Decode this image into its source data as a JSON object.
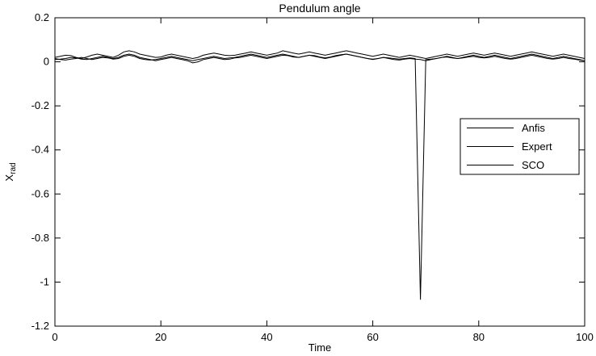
{
  "figure": {
    "title": "Pendulum angle"
  },
  "chart_data": {
    "type": "line",
    "title": "Pendulum angle",
    "xlabel": "Time",
    "ylabel": "X rad",
    "ylabel_main": "X",
    "ylabel_sub": "rad",
    "xlim": [
      0,
      100
    ],
    "ylim": [
      -1.2,
      0.2
    ],
    "xticks": [
      0,
      20,
      40,
      60,
      80,
      100
    ],
    "xtick_labels": [
      "0",
      "20",
      "40",
      "60",
      "80",
      "100"
    ],
    "yticks": [
      0.2,
      0,
      -0.2,
      -0.4,
      -0.6,
      -0.8,
      -1,
      -1.2
    ],
    "ytick_labels": [
      "0.2",
      "0",
      "-0.2",
      "-0.4",
      "-0.6",
      "-0.8",
      "-1",
      "-1.2"
    ],
    "grid": false,
    "legend_position": "middle-right",
    "line_color": "#000000",
    "background_color": "#ffffff",
    "x_step": 1,
    "annotation": "sharp negative spike to about -1.08 near t=69",
    "series": [
      {
        "name": "Anfis",
        "values": [
          0.02,
          0.025,
          0.03,
          0.028,
          0.02,
          0.015,
          0.022,
          0.03,
          0.035,
          0.03,
          0.025,
          0.02,
          0.03,
          0.045,
          0.05,
          0.045,
          0.035,
          0.03,
          0.025,
          0.02,
          0.022,
          0.03,
          0.035,
          0.03,
          0.025,
          0.02,
          0.015,
          0.02,
          0.03,
          0.035,
          0.04,
          0.035,
          0.03,
          0.028,
          0.03,
          0.035,
          0.04,
          0.045,
          0.04,
          0.035,
          0.03,
          0.035,
          0.04,
          0.05,
          0.045,
          0.04,
          0.035,
          0.04,
          0.045,
          0.04,
          0.035,
          0.03,
          0.035,
          0.04,
          0.045,
          0.05,
          0.045,
          0.04,
          0.035,
          0.03,
          0.025,
          0.03,
          0.035,
          0.03,
          0.025,
          0.02,
          0.025,
          0.03,
          0.025,
          0.02,
          0.015,
          0.02,
          0.025,
          0.03,
          0.035,
          0.03,
          0.025,
          0.03,
          0.035,
          0.04,
          0.035,
          0.03,
          0.035,
          0.04,
          0.035,
          0.03,
          0.025,
          0.03,
          0.035,
          0.04,
          0.045,
          0.04,
          0.035,
          0.03,
          0.025,
          0.03,
          0.035,
          0.03,
          0.025,
          0.02,
          0.015
        ]
      },
      {
        "name": "Expert",
        "values": [
          0.01,
          0.012,
          0.015,
          0.02,
          0.018,
          0.012,
          0.01,
          0.015,
          0.02,
          0.025,
          0.02,
          0.015,
          0.02,
          0.03,
          0.035,
          0.03,
          0.02,
          0.015,
          0.01,
          0.005,
          0.01,
          0.015,
          0.02,
          0.015,
          0.01,
          0.005,
          -0.005,
          0.0,
          0.01,
          0.015,
          0.02,
          0.015,
          0.01,
          0.012,
          0.018,
          0.02,
          0.025,
          0.03,
          0.025,
          0.02,
          0.015,
          0.02,
          0.025,
          0.03,
          0.028,
          0.022,
          0.02,
          0.025,
          0.03,
          0.025,
          0.02,
          0.015,
          0.02,
          0.025,
          0.03,
          0.035,
          0.03,
          0.025,
          0.02,
          0.015,
          0.01,
          0.015,
          0.02,
          0.015,
          0.01,
          0.008,
          0.012,
          0.015,
          0.012,
          0.01,
          0.005,
          0.01,
          0.015,
          0.02,
          0.025,
          0.02,
          0.015,
          0.02,
          0.025,
          0.03,
          0.025,
          0.02,
          0.025,
          0.03,
          0.025,
          0.02,
          0.015,
          0.02,
          0.025,
          0.03,
          0.035,
          0.03,
          0.025,
          0.02,
          0.015,
          0.02,
          0.025,
          0.02,
          0.015,
          0.01,
          0.005
        ]
      },
      {
        "name": "SCO",
        "values": [
          0.015,
          0.01,
          0.008,
          0.012,
          0.015,
          0.02,
          0.015,
          0.01,
          0.015,
          0.02,
          0.018,
          0.012,
          0.015,
          0.025,
          0.03,
          0.025,
          0.015,
          0.01,
          0.008,
          0.01,
          0.015,
          0.02,
          0.025,
          0.02,
          0.015,
          0.01,
          0.005,
          0.01,
          0.015,
          0.02,
          0.025,
          0.02,
          0.015,
          0.018,
          0.02,
          0.025,
          0.03,
          0.035,
          0.03,
          0.025,
          0.02,
          0.025,
          0.03,
          0.035,
          0.03,
          0.025,
          0.02,
          0.025,
          0.03,
          0.028,
          0.022,
          0.018,
          0.022,
          0.028,
          0.032,
          0.035,
          0.03,
          0.025,
          0.02,
          0.015,
          0.012,
          0.015,
          0.02,
          0.018,
          0.015,
          0.012,
          0.015,
          0.018,
          0.015,
          -1.08,
          0.01,
          0.012,
          0.015,
          0.02,
          0.022,
          0.018,
          0.015,
          0.018,
          0.022,
          0.025,
          0.02,
          0.018,
          0.02,
          0.025,
          0.02,
          0.015,
          0.012,
          0.015,
          0.02,
          0.025,
          0.03,
          0.025,
          0.02,
          0.015,
          0.012,
          0.015,
          0.02,
          0.015,
          0.012,
          0.008,
          0.005
        ]
      }
    ]
  }
}
